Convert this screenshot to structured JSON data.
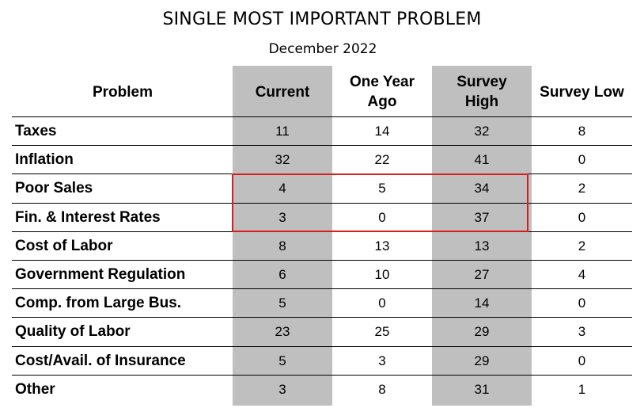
{
  "chart_data": {
    "type": "table",
    "title": "SINGLE MOST IMPORTANT PROBLEM",
    "subtitle": "December 2022",
    "columns": [
      "Problem",
      "Current",
      "One Year Ago",
      "Survey High",
      "Survey Low"
    ],
    "column_labels": {
      "problem": "Problem",
      "current": "Current",
      "one_year_ago_line1": "One Year",
      "one_year_ago_line2": "Ago",
      "survey_high_line1": "Survey",
      "survey_high_line2": "High",
      "survey_low": "Survey Low"
    },
    "rows": [
      {
        "problem": "Taxes",
        "current": "11",
        "one_year_ago": "14",
        "survey_high": "32",
        "survey_low": "8"
      },
      {
        "problem": "Inflation",
        "current": "32",
        "one_year_ago": "22",
        "survey_high": "41",
        "survey_low": "0"
      },
      {
        "problem": "Poor Sales",
        "current": "4",
        "one_year_ago": "5",
        "survey_high": "34",
        "survey_low": "2"
      },
      {
        "problem": "Fin. & Interest Rates",
        "current": "3",
        "one_year_ago": "0",
        "survey_high": "37",
        "survey_low": "0"
      },
      {
        "problem": "Cost of Labor",
        "current": "8",
        "one_year_ago": "13",
        "survey_high": "13",
        "survey_low": "2"
      },
      {
        "problem": "Government Regulation",
        "current": "6",
        "one_year_ago": "10",
        "survey_high": "27",
        "survey_low": "4"
      },
      {
        "problem": "Comp. from Large Bus.",
        "current": "5",
        "one_year_ago": "0",
        "survey_high": "14",
        "survey_low": "0"
      },
      {
        "problem": "Quality of Labor",
        "current": "23",
        "one_year_ago": "25",
        "survey_high": "29",
        "survey_low": "3"
      },
      {
        "problem": "Cost/Avail. of Insurance",
        "current": "5",
        "one_year_ago": "3",
        "survey_high": "29",
        "survey_low": "0"
      },
      {
        "problem": "Other",
        "current": "3",
        "one_year_ago": "8",
        "survey_high": "31",
        "survey_low": "1"
      }
    ],
    "shaded_columns": [
      "Current",
      "Survey High"
    ],
    "highlighted_rows": [
      "Poor Sales",
      "Fin. & Interest Rates"
    ],
    "colors": {
      "shade": "#bfbfbf",
      "highlight": "#d62020",
      "text": "#000000"
    }
  }
}
